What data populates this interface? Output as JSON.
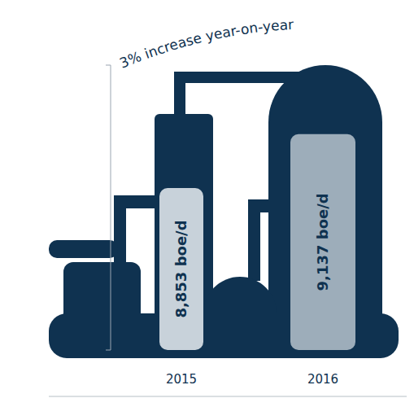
{
  "chart_data": {
    "type": "bar",
    "annotation": "3% increase year-on-year",
    "categories": [
      "2015",
      "2016"
    ],
    "values": [
      8853,
      9137
    ],
    "value_labels": [
      "8,853 boe/d",
      "9,137 boe/d"
    ],
    "colors": [
      "#c8d2da",
      "#9dadba"
    ],
    "ylim": [
      8000,
      9500
    ],
    "yticks": [
      8000,
      9500
    ],
    "data_labels": true,
    "tick_labels": "x",
    "grid": false
  }
}
